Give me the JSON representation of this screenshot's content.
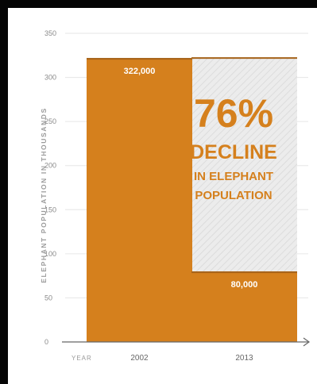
{
  "colors": {
    "bar": "#d5801d",
    "bar_top_line": "#a5621a",
    "decline_area": "#e8e8e8",
    "annotation": "#d5801d",
    "axis": "#666666",
    "grid": "#e6e6e6"
  },
  "chart_data": {
    "type": "bar",
    "categories": [
      "2002",
      "2013"
    ],
    "values": [
      322,
      80
    ],
    "value_labels": [
      "322,000",
      "80,000"
    ],
    "ylabel": "ELEPHANT POPULATION IN THOUSANDS",
    "xlabel": "YEAR",
    "ylim": [
      0,
      350
    ],
    "yticks": [
      0,
      50,
      100,
      150,
      200,
      250,
      300,
      350
    ],
    "grid": true,
    "decline_reference": 322,
    "annotation": {
      "line1": "76%",
      "line2": "DECLINE",
      "line3": "IN ELEPHANT",
      "line4": "POPULATION"
    }
  }
}
